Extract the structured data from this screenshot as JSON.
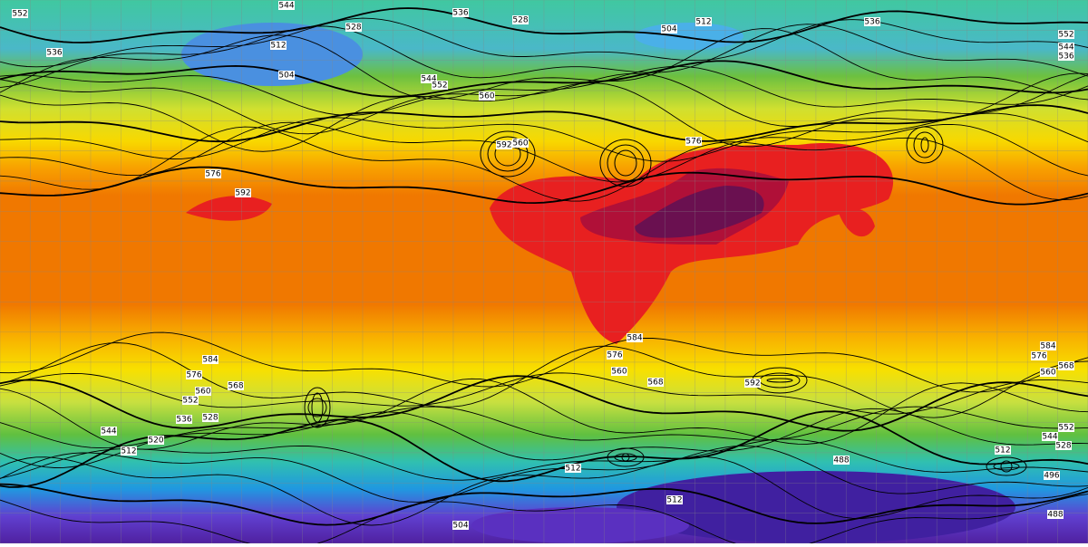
{
  "map": {
    "contour_labels": [
      "552",
      "544",
      "536",
      "528",
      "504",
      "512",
      "536",
      "552",
      "544",
      "536",
      "536",
      "528",
      "512",
      "504",
      "544",
      "552",
      "560",
      "560",
      "576",
      "584",
      "576",
      "560",
      "568",
      "592",
      "584",
      "576",
      "568",
      "560",
      "552",
      "536",
      "528",
      "544",
      "512",
      "520",
      "512",
      "496",
      "488",
      "512",
      "504",
      "488",
      "584",
      "576",
      "568",
      "560",
      "552",
      "544",
      "528",
      "512",
      "592",
      "576",
      "592"
    ]
  }
}
